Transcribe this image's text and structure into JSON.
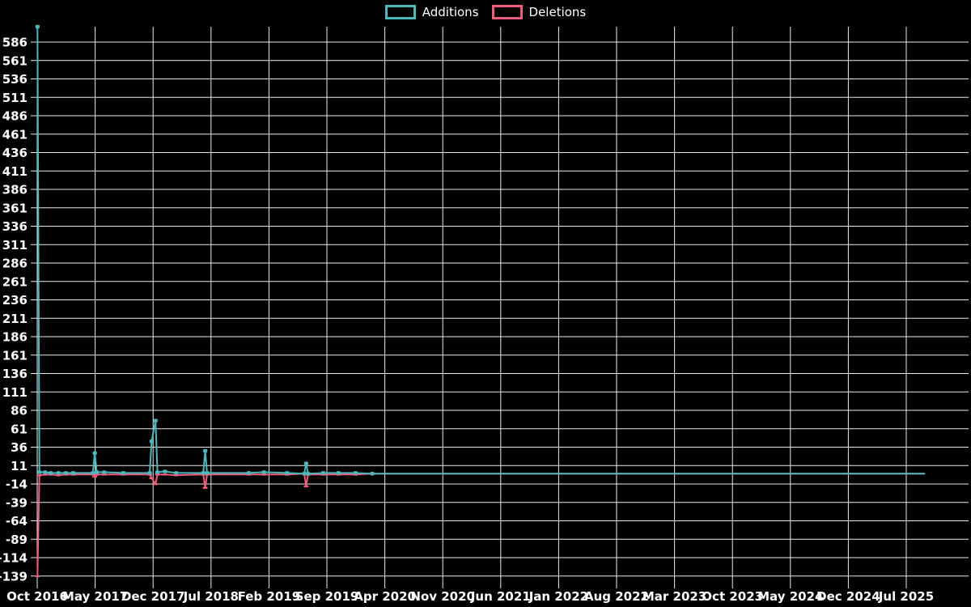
{
  "page": {
    "background": "#000000",
    "text_color": "#ffffff"
  },
  "legend": {
    "position": "top-center",
    "items": [
      {
        "label": "Additions",
        "color": "#4cb7bd"
      },
      {
        "label": "Deletions",
        "color": "#ef5d7c"
      }
    ]
  },
  "chart_data": {
    "type": "line",
    "title": "",
    "xlabel": "",
    "ylabel": "",
    "legend_position": "top-center",
    "grid": {
      "shown": true,
      "color": "#ececec",
      "background": "#000000"
    },
    "x_axis": {
      "start_label": "Oct 2016",
      "months_per_tick": 7,
      "tick_labels": [
        "Oct 2016",
        "May 2017",
        "Dec 2017",
        "Jul 2018",
        "Feb 2019",
        "Sep 2019",
        "Apr 2020",
        "Nov 2020",
        "Jun 2021",
        "Jan 2022",
        "Aug 2022",
        "Mar 2023",
        "Oct 2023",
        "May 2024",
        "Dec 2024",
        "Jul 2025"
      ]
    },
    "y_axis": {
      "tick_max": 586,
      "tick_min": -139,
      "tick_step": 25,
      "plot_top_value": 607
    },
    "dates": [
      "2016-10-02",
      "2016-10-09",
      "2016-10-30",
      "2016-11-20",
      "2016-12-18",
      "2017-01-15",
      "2017-02-12",
      "2017-04-23",
      "2017-04-30",
      "2017-05-07",
      "2017-06-04",
      "2017-08-13",
      "2017-11-19",
      "2017-11-26",
      "2017-12-10",
      "2017-12-17",
      "2018-01-14",
      "2018-02-25",
      "2018-06-03",
      "2018-06-10",
      "2018-06-17",
      "2018-11-18",
      "2019-01-13",
      "2019-04-07",
      "2019-06-09",
      "2019-06-16",
      "2019-06-23",
      "2019-08-18",
      "2019-10-13",
      "2019-12-15",
      "2020-02-16",
      "2025-09-07"
    ],
    "marker_cutoff_date": "2020-03-01",
    "series": [
      {
        "name": "Additions",
        "color": "#4cb7bd",
        "values": [
          607,
          2,
          2,
          1,
          1,
          1,
          1,
          1,
          28,
          2,
          2,
          1,
          1,
          44,
          72,
          2,
          3,
          1,
          1,
          31,
          1,
          1,
          2,
          1,
          0,
          14,
          0,
          1,
          1,
          1,
          0,
          0
        ]
      },
      {
        "name": "Deletions",
        "color": "#ef5d7c",
        "values": [
          -139,
          -2,
          -1,
          -1,
          -2,
          -1,
          -1,
          -1,
          -4,
          -1,
          -1,
          -1,
          -1,
          -6,
          -14,
          -1,
          -1,
          -2,
          -1,
          -19,
          -1,
          -1,
          -1,
          -1,
          0,
          -17,
          -1,
          -1,
          -1,
          -1,
          0,
          0
        ]
      }
    ]
  }
}
